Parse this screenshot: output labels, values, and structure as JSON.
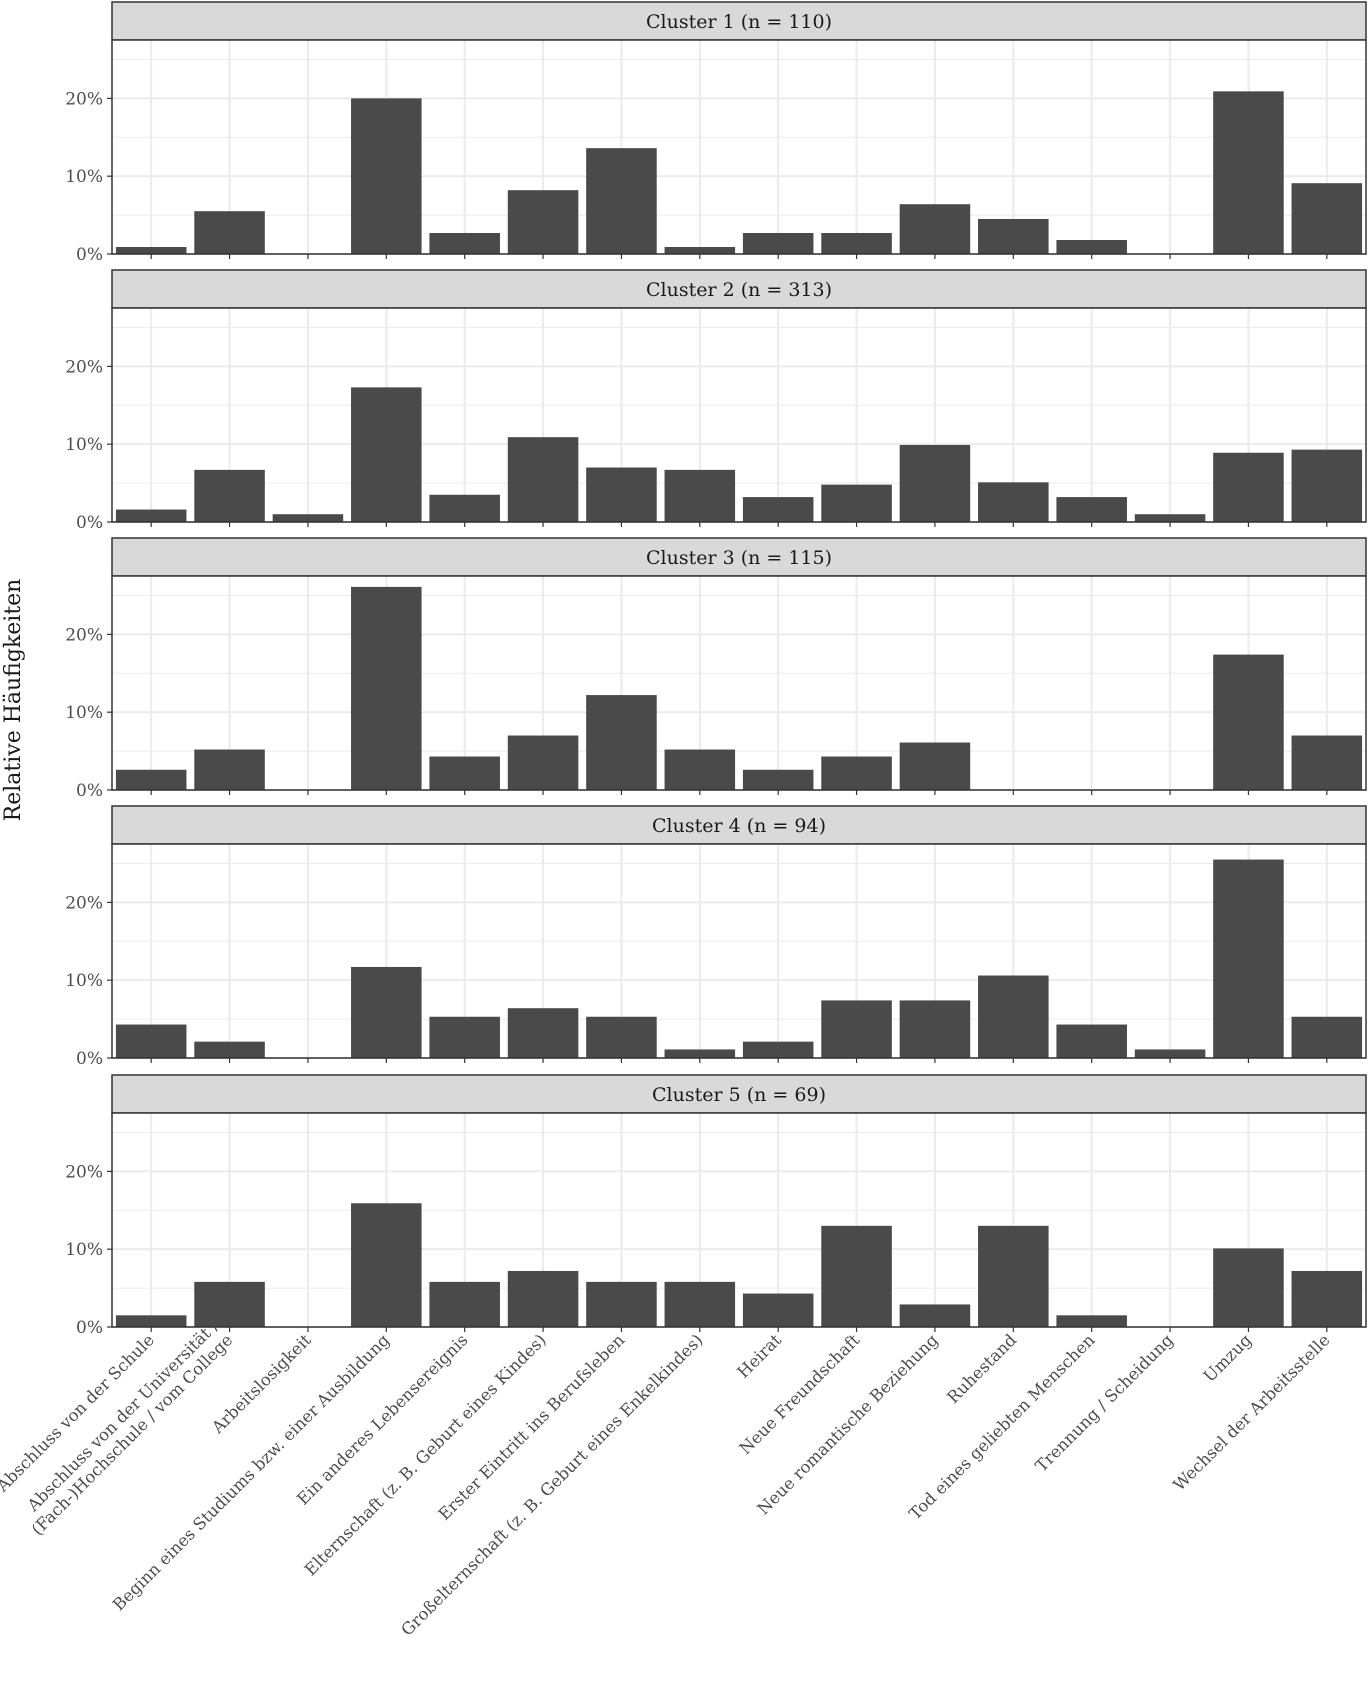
{
  "chart_data": {
    "type": "bar",
    "ylabel": "Relative Häufigkeiten",
    "xlabel": "",
    "ylim": [
      0,
      0.275
    ],
    "y_ticks": [
      0,
      0.1,
      0.2
    ],
    "y_tick_labels": [
      "0%",
      "10%",
      "20%"
    ],
    "categories": [
      "Abschluss von der Schule",
      "Abschluss von der Universität /\n(Fach-)Hochschule / vom College",
      "Arbeitslosigkeit",
      "Beginn eines Studiums bzw. einer Ausbildung",
      "Ein anderes Lebensereignis",
      "Elternschaft (z. B. Geburt eines Kindes)",
      "Erster Eintritt ins Berufsleben",
      "Großelternschaft (z. B. Geburt eines Enkelkindes)",
      "Heirat",
      "Neue Freundschaft",
      "Neue romantische Beziehung",
      "Ruhestand",
      "Tod eines geliebten Menschen",
      "Trennung / Scheidung",
      "Umzug",
      "Wechsel der Arbeitsstelle"
    ],
    "series": [
      {
        "name": "Cluster 1 (n = 110)",
        "values": [
          0.009,
          0.055,
          0,
          0.2,
          0.027,
          0.082,
          0.136,
          0.009,
          0.027,
          0.027,
          0.064,
          0.045,
          0.018,
          0,
          0.209,
          0.091
        ]
      },
      {
        "name": "Cluster 2 (n = 313)",
        "values": [
          0.016,
          0.067,
          0.01,
          0.173,
          0.035,
          0.109,
          0.07,
          0.067,
          0.032,
          0.048,
          0.099,
          0.051,
          0.032,
          0.01,
          0.089,
          0.093
        ]
      },
      {
        "name": "Cluster 3 (n = 115)",
        "values": [
          0.026,
          0.052,
          0,
          0.261,
          0.043,
          0.07,
          0.122,
          0.052,
          0.026,
          0.043,
          0.061,
          0,
          0,
          0,
          0.174,
          0.07
        ]
      },
      {
        "name": "Cluster 4 (n = 94)",
        "values": [
          0.043,
          0.021,
          0,
          0.117,
          0.053,
          0.064,
          0.053,
          0.011,
          0.021,
          0.074,
          0.074,
          0.106,
          0.043,
          0.011,
          0.255,
          0.053
        ]
      },
      {
        "name": "Cluster 5 (n = 69)",
        "values": [
          0.015,
          0.058,
          0,
          0.159,
          0.058,
          0.072,
          0.058,
          0.058,
          0.043,
          0.13,
          0.029,
          0.13,
          0.015,
          0,
          0.101,
          0.072
        ]
      }
    ],
    "colors": {
      "bar": "#4a4a4a",
      "strip": "#d9d9d9",
      "grid": "#ebebeb",
      "frame": "#333333"
    }
  }
}
